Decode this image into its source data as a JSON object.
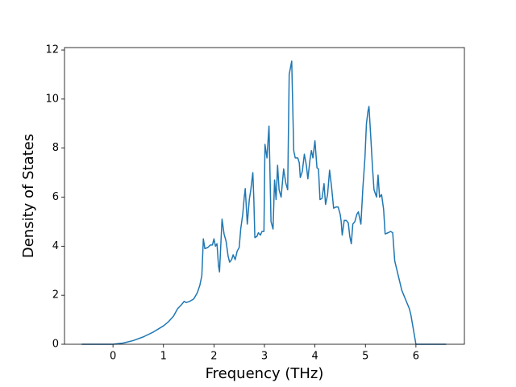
{
  "chart_data": {
    "type": "line",
    "xlabel": "Frequency (THz)",
    "ylabel": "Density of States",
    "xlim": [
      -0.96,
      6.96
    ],
    "ylim": [
      0,
      12.1
    ],
    "xticks": [
      0,
      1,
      2,
      3,
      4,
      5,
      6
    ],
    "yticks": [
      0,
      2,
      4,
      6,
      8,
      10,
      12
    ],
    "x": [
      -0.62,
      0,
      0.2,
      0.4,
      0.6,
      0.8,
      1.0,
      1.1,
      1.2,
      1.28,
      1.35,
      1.41,
      1.45,
      1.52,
      1.6,
      1.67,
      1.72,
      1.76,
      1.79,
      1.82,
      1.88,
      1.93,
      1.97,
      2.0,
      2.03,
      2.06,
      2.09,
      2.11,
      2.16,
      2.2,
      2.24,
      2.28,
      2.31,
      2.35,
      2.38,
      2.42,
      2.46,
      2.5,
      2.53,
      2.57,
      2.6,
      2.62,
      2.66,
      2.7,
      2.73,
      2.77,
      2.79,
      2.81,
      2.85,
      2.88,
      2.92,
      2.95,
      2.99,
      3.01,
      3.05,
      3.09,
      3.13,
      3.17,
      3.2,
      3.23,
      3.26,
      3.29,
      3.33,
      3.38,
      3.42,
      3.46,
      3.49,
      3.54,
      3.58,
      3.61,
      3.66,
      3.69,
      3.71,
      3.75,
      3.79,
      3.83,
      3.86,
      3.9,
      3.93,
      3.96,
      4.0,
      4.04,
      4.07,
      4.1,
      4.14,
      4.18,
      4.21,
      4.25,
      4.29,
      4.33,
      4.37,
      4.42,
      4.46,
      4.5,
      4.52,
      4.54,
      4.58,
      4.62,
      4.66,
      4.69,
      4.72,
      4.75,
      4.79,
      4.83,
      4.86,
      4.91,
      4.95,
      4.99,
      5.02,
      5.05,
      5.07,
      5.11,
      5.14,
      5.17,
      5.22,
      5.25,
      5.28,
      5.32,
      5.36,
      5.39,
      5.45,
      5.5,
      5.54,
      5.58,
      5.65,
      5.72,
      5.8,
      5.87,
      5.9,
      5.95,
      6.0,
      6.6
    ],
    "series": [
      {
        "color": "#1f77b4",
        "values": [
          0,
          0,
          0.05,
          0.15,
          0.3,
          0.5,
          0.75,
          0.92,
          1.15,
          1.45,
          1.6,
          1.75,
          1.7,
          1.75,
          1.85,
          2.1,
          2.4,
          2.8,
          4.3,
          3.9,
          3.95,
          4.05,
          4.05,
          4.3,
          4.0,
          4.1,
          3.2,
          2.95,
          5.1,
          4.5,
          4.2,
          3.6,
          3.35,
          3.45,
          3.65,
          3.45,
          3.8,
          3.95,
          4.7,
          5.3,
          6.0,
          6.35,
          4.9,
          5.9,
          6.3,
          7.0,
          5.9,
          4.35,
          4.4,
          4.55,
          4.45,
          4.6,
          4.6,
          8.15,
          7.6,
          8.9,
          5.0,
          4.7,
          6.7,
          5.9,
          7.3,
          6.3,
          6.0,
          7.15,
          6.6,
          6.3,
          11.0,
          11.55,
          7.9,
          7.6,
          7.6,
          7.4,
          6.8,
          7.05,
          7.75,
          7.3,
          6.75,
          7.5,
          7.9,
          7.6,
          8.3,
          7.2,
          7.15,
          5.9,
          5.95,
          6.55,
          5.7,
          6.1,
          7.1,
          6.4,
          5.55,
          5.6,
          5.6,
          5.3,
          5.0,
          4.45,
          5.05,
          5.05,
          4.95,
          4.4,
          4.1,
          4.9,
          5.0,
          5.3,
          5.4,
          4.9,
          6.4,
          7.6,
          9.0,
          9.5,
          9.7,
          8.3,
          7.2,
          6.3,
          6.0,
          6.9,
          6.0,
          6.1,
          5.5,
          4.5,
          4.55,
          4.6,
          4.55,
          3.4,
          2.8,
          2.2,
          1.8,
          1.45,
          1.2,
          0.6,
          0,
          0
        ]
      }
    ]
  }
}
